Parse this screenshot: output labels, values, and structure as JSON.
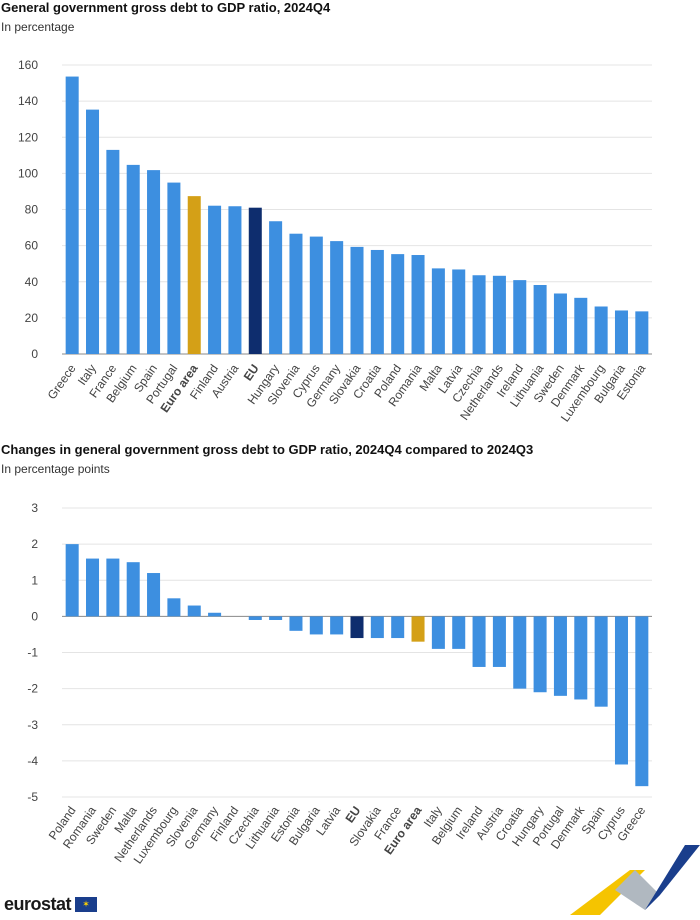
{
  "chart_data": [
    {
      "type": "bar",
      "title": "General government gross debt to GDP ratio, 2024Q4",
      "subtitle": "In percentage",
      "ylim": [
        0,
        160
      ],
      "yticks": [
        0,
        20,
        40,
        60,
        80,
        100,
        120,
        140,
        160
      ],
      "grid": true,
      "categories": [
        "Greece",
        "Italy",
        "France",
        "Belgium",
        "Spain",
        "Portugal",
        "Euro area",
        "Finland",
        "Austria",
        "EU",
        "Hungary",
        "Slovenia",
        "Cyprus",
        "Germany",
        "Slovakia",
        "Croatia",
        "Poland",
        "Romania",
        "Malta",
        "Latvia",
        "Czechia",
        "Netherlands",
        "Ireland",
        "Lithuania",
        "Sweden",
        "Denmark",
        "Luxembourg",
        "Bulgaria",
        "Estonia"
      ],
      "values": [
        153.6,
        135.3,
        113.0,
        104.7,
        101.8,
        94.9,
        87.4,
        82.1,
        81.8,
        81.0,
        73.5,
        66.6,
        65.0,
        62.5,
        59.3,
        57.6,
        55.3,
        54.8,
        47.4,
        46.8,
        43.6,
        43.3,
        40.9,
        38.2,
        33.5,
        31.1,
        26.3,
        24.1,
        23.6
      ],
      "highlight": {
        "Euro area": "#d4a017",
        "EU": "#0e2d6e"
      },
      "bold_labels": [
        "Euro area",
        "EU"
      ],
      "bar_color": "#3d8fe0"
    },
    {
      "type": "bar",
      "title": "Changes in general government gross debt to GDP ratio, 2024Q4 compared to 2024Q3",
      "subtitle": "In percentage points",
      "ylim": [
        -5,
        3
      ],
      "yticks": [
        -5,
        -4,
        -3,
        -2,
        -1,
        0,
        1,
        2,
        3
      ],
      "grid": true,
      "categories": [
        "Poland",
        "Romania",
        "Sweden",
        "Malta",
        "Netherlands",
        "Luxembourg",
        "Slovenia",
        "Germany",
        "Finland",
        "Czechia",
        "Lithuania",
        "Estonia",
        "Bulgaria",
        "Latvia",
        "EU",
        "Slovakia",
        "France",
        "Euro area",
        "Italy",
        "Belgium",
        "Ireland",
        "Austria",
        "Croatia",
        "Hungary",
        "Portugal",
        "Denmark",
        "Spain",
        "Cyprus",
        "Greece"
      ],
      "values": [
        2.0,
        1.6,
        1.6,
        1.5,
        1.2,
        0.5,
        0.3,
        0.1,
        0.0,
        -0.1,
        -0.1,
        -0.4,
        -0.5,
        -0.5,
        -0.6,
        -0.6,
        -0.6,
        -0.7,
        -0.9,
        -0.9,
        -1.4,
        -1.4,
        -2.0,
        -2.1,
        -2.2,
        -2.3,
        -2.5,
        -4.1,
        -4.7
      ],
      "highlight": {
        "Euro area": "#d4a017",
        "EU": "#0e2d6e"
      },
      "bold_labels": [
        "Euro area",
        "EU"
      ],
      "bar_color": "#3d8fe0"
    }
  ],
  "footer": {
    "logo_text": "eurostat",
    "flag_stars": "✶"
  }
}
